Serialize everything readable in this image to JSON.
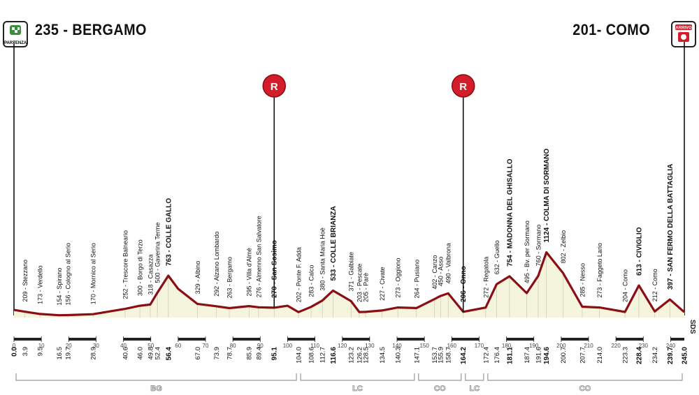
{
  "header": {
    "start_city": "235 - BERGAMO",
    "finish_city": "201- COMO",
    "start_badge": "PARTENZA",
    "finish_badge": "ARRIVO"
  },
  "brand": {
    "logo": "SDS"
  },
  "colors": {
    "profile_line": "#8B0E14",
    "profile_fill": "#F4F5DC",
    "sprint": "#D21E2A",
    "axis": "#222222"
  },
  "chart_data": {
    "type": "area",
    "x_unit": "km",
    "xlim": [
      0,
      245
    ],
    "x_ticks": [
      0,
      10,
      20,
      30,
      40,
      50,
      60,
      70,
      80,
      90,
      100,
      110,
      120,
      130,
      140,
      150,
      160,
      170,
      180,
      190,
      200,
      210,
      220,
      230,
      240
    ],
    "profile": [
      [
        0,
        235
      ],
      [
        3.9,
        209
      ],
      [
        9.5,
        173
      ],
      [
        16.5,
        154
      ],
      [
        19.7,
        156
      ],
      [
        28.9,
        170
      ],
      [
        40.6,
        252
      ],
      [
        46,
        300
      ],
      [
        49.8,
        318
      ],
      [
        52.4,
        500
      ],
      [
        56.4,
        763
      ],
      [
        60,
        560
      ],
      [
        67,
        329
      ],
      [
        73.9,
        292
      ],
      [
        78.7,
        263
      ],
      [
        85.9,
        295
      ],
      [
        89.4,
        276
      ],
      [
        95.1,
        270
      ],
      [
        100,
        300
      ],
      [
        104,
        202
      ],
      [
        108.6,
        283
      ],
      [
        112.7,
        380
      ],
      [
        116.6,
        533
      ],
      [
        120,
        450
      ],
      [
        123.2,
        371
      ],
      [
        126.2,
        203
      ],
      [
        128.5,
        205
      ],
      [
        134.5,
        227
      ],
      [
        140.3,
        273
      ],
      [
        147.1,
        264
      ],
      [
        153.7,
        402
      ],
      [
        155.9,
        450
      ],
      [
        158.7,
        490
      ],
      [
        164.2,
        206
      ],
      [
        172.4,
        272
      ],
      [
        176.4,
        632
      ],
      [
        181.1,
        754
      ],
      [
        187.4,
        495
      ],
      [
        191.6,
        760
      ],
      [
        194.6,
        1124
      ],
      [
        200.7,
        802
      ],
      [
        207.7,
        285
      ],
      [
        214,
        273
      ],
      [
        223.3,
        204
      ],
      [
        228.4,
        613
      ],
      [
        234.2,
        212
      ],
      [
        239.7,
        397
      ],
      [
        245,
        201
      ]
    ],
    "points": [
      {
        "km": "0.0",
        "label": "",
        "bold": true
      },
      {
        "km": "3.9",
        "label": "209 - Stezzano",
        "bold": false
      },
      {
        "km": "9.5",
        "label": "173 - Verdello",
        "bold": false
      },
      {
        "km": "16.5",
        "label": "154 - Spirano",
        "bold": false
      },
      {
        "km": "19.7",
        "label": "156 - Cologno al Serio",
        "bold": false
      },
      {
        "km": "28.9",
        "label": "170 - Mornico al Serio",
        "bold": false
      },
      {
        "km": "40.6",
        "label": "252 - Trescore Balneario",
        "bold": false
      },
      {
        "km": "46.0",
        "label": "300 - Borgo di Terzo",
        "bold": false
      },
      {
        "km": "49.8",
        "label": "318 - Casazza",
        "bold": false
      },
      {
        "km": "52.4",
        "label": "500 - Gaverina Terme",
        "bold": false
      },
      {
        "km": "56.4",
        "label": "763 - COLLE GALLO",
        "bold": true
      },
      {
        "km": "67.0",
        "label": "329 - Albino",
        "bold": false
      },
      {
        "km": "73.9",
        "label": "292 - Alzano Lombardo",
        "bold": false
      },
      {
        "km": "78.7",
        "label": "263 - Bergamo",
        "bold": false
      },
      {
        "km": "85.9",
        "label": "295 - Villa d'Almè",
        "bold": false
      },
      {
        "km": "89.4",
        "label": "276 - Almenno San Salvatore",
        "bold": false
      },
      {
        "km": "95.1",
        "label": "270 - San Sosimo",
        "bold": true
      },
      {
        "km": "104.0",
        "label": "202 - Ponte F. Adda",
        "bold": false
      },
      {
        "km": "108.6",
        "label": "283 - Calco",
        "bold": false
      },
      {
        "km": "112.7",
        "label": "380 - Santa Maria Hoè",
        "bold": false
      },
      {
        "km": "116.6",
        "label": "533 - COLLE BRIANZA",
        "bold": true
      },
      {
        "km": "123.2",
        "label": "371 - Galbiate",
        "bold": false
      },
      {
        "km": "126.2",
        "label": "203 - Pescate",
        "bold": false
      },
      {
        "km": "128.5",
        "label": "205 - Parè",
        "bold": false
      },
      {
        "km": "134.5",
        "label": "227 - Civate",
        "bold": false
      },
      {
        "km": "140.3",
        "label": "273 - Oggiono",
        "bold": false
      },
      {
        "km": "147.1",
        "label": "264 - Pusiano",
        "bold": false
      },
      {
        "km": "153.7",
        "label": "402 - Canzo",
        "bold": false
      },
      {
        "km": "155.9",
        "label": "450 - Asso",
        "bold": false
      },
      {
        "km": "158.7",
        "label": "490 - Valbrona",
        "bold": false
      },
      {
        "km": "164.2",
        "label": "206 - Onno",
        "bold": true
      },
      {
        "km": "172.4",
        "label": "272 - Regatola",
        "bold": false
      },
      {
        "km": "176.4",
        "label": "632 - Guello",
        "bold": false
      },
      {
        "km": "181.1",
        "label": "754 - MADONNA DEL GHISALLO",
        "bold": true
      },
      {
        "km": "187.4",
        "label": "495 - Bv. per Sormano",
        "bold": false
      },
      {
        "km": "191.6",
        "label": "760 - Sormano",
        "bold": false
      },
      {
        "km": "194.6",
        "label": "1124 - COLMA DI SORMANO",
        "bold": true
      },
      {
        "km": "200.7",
        "label": "802 - Zelbio",
        "bold": false
      },
      {
        "km": "207.7",
        "label": "285 - Nesso",
        "bold": false
      },
      {
        "km": "214.0",
        "label": "273 - Faggeto Lario",
        "bold": false
      },
      {
        "km": "223.3",
        "label": "204 - Como",
        "bold": false
      },
      {
        "km": "228.4",
        "label": "613 - CIVIGLIO",
        "bold": true
      },
      {
        "km": "234.2",
        "label": "212 - Como",
        "bold": false
      },
      {
        "km": "239.7",
        "label": "397 - SAN FERMO DELLA BATTAGLIA",
        "bold": true
      },
      {
        "km": "245.0",
        "label": "",
        "bold": true
      }
    ],
    "sprints": [
      {
        "km": 95.1,
        "label": "R"
      },
      {
        "km": 164.2,
        "label": "R"
      }
    ],
    "provinces": [
      {
        "label": "BG",
        "from": 0,
        "to": 104
      },
      {
        "label": "LC",
        "from": 104,
        "to": 147.1
      },
      {
        "label": "CO",
        "from": 147.1,
        "to": 164.2
      },
      {
        "label": "LC",
        "from": 164.2,
        "to": 172.4
      },
      {
        "label": "CO",
        "from": 172.4,
        "to": 245
      }
    ]
  }
}
